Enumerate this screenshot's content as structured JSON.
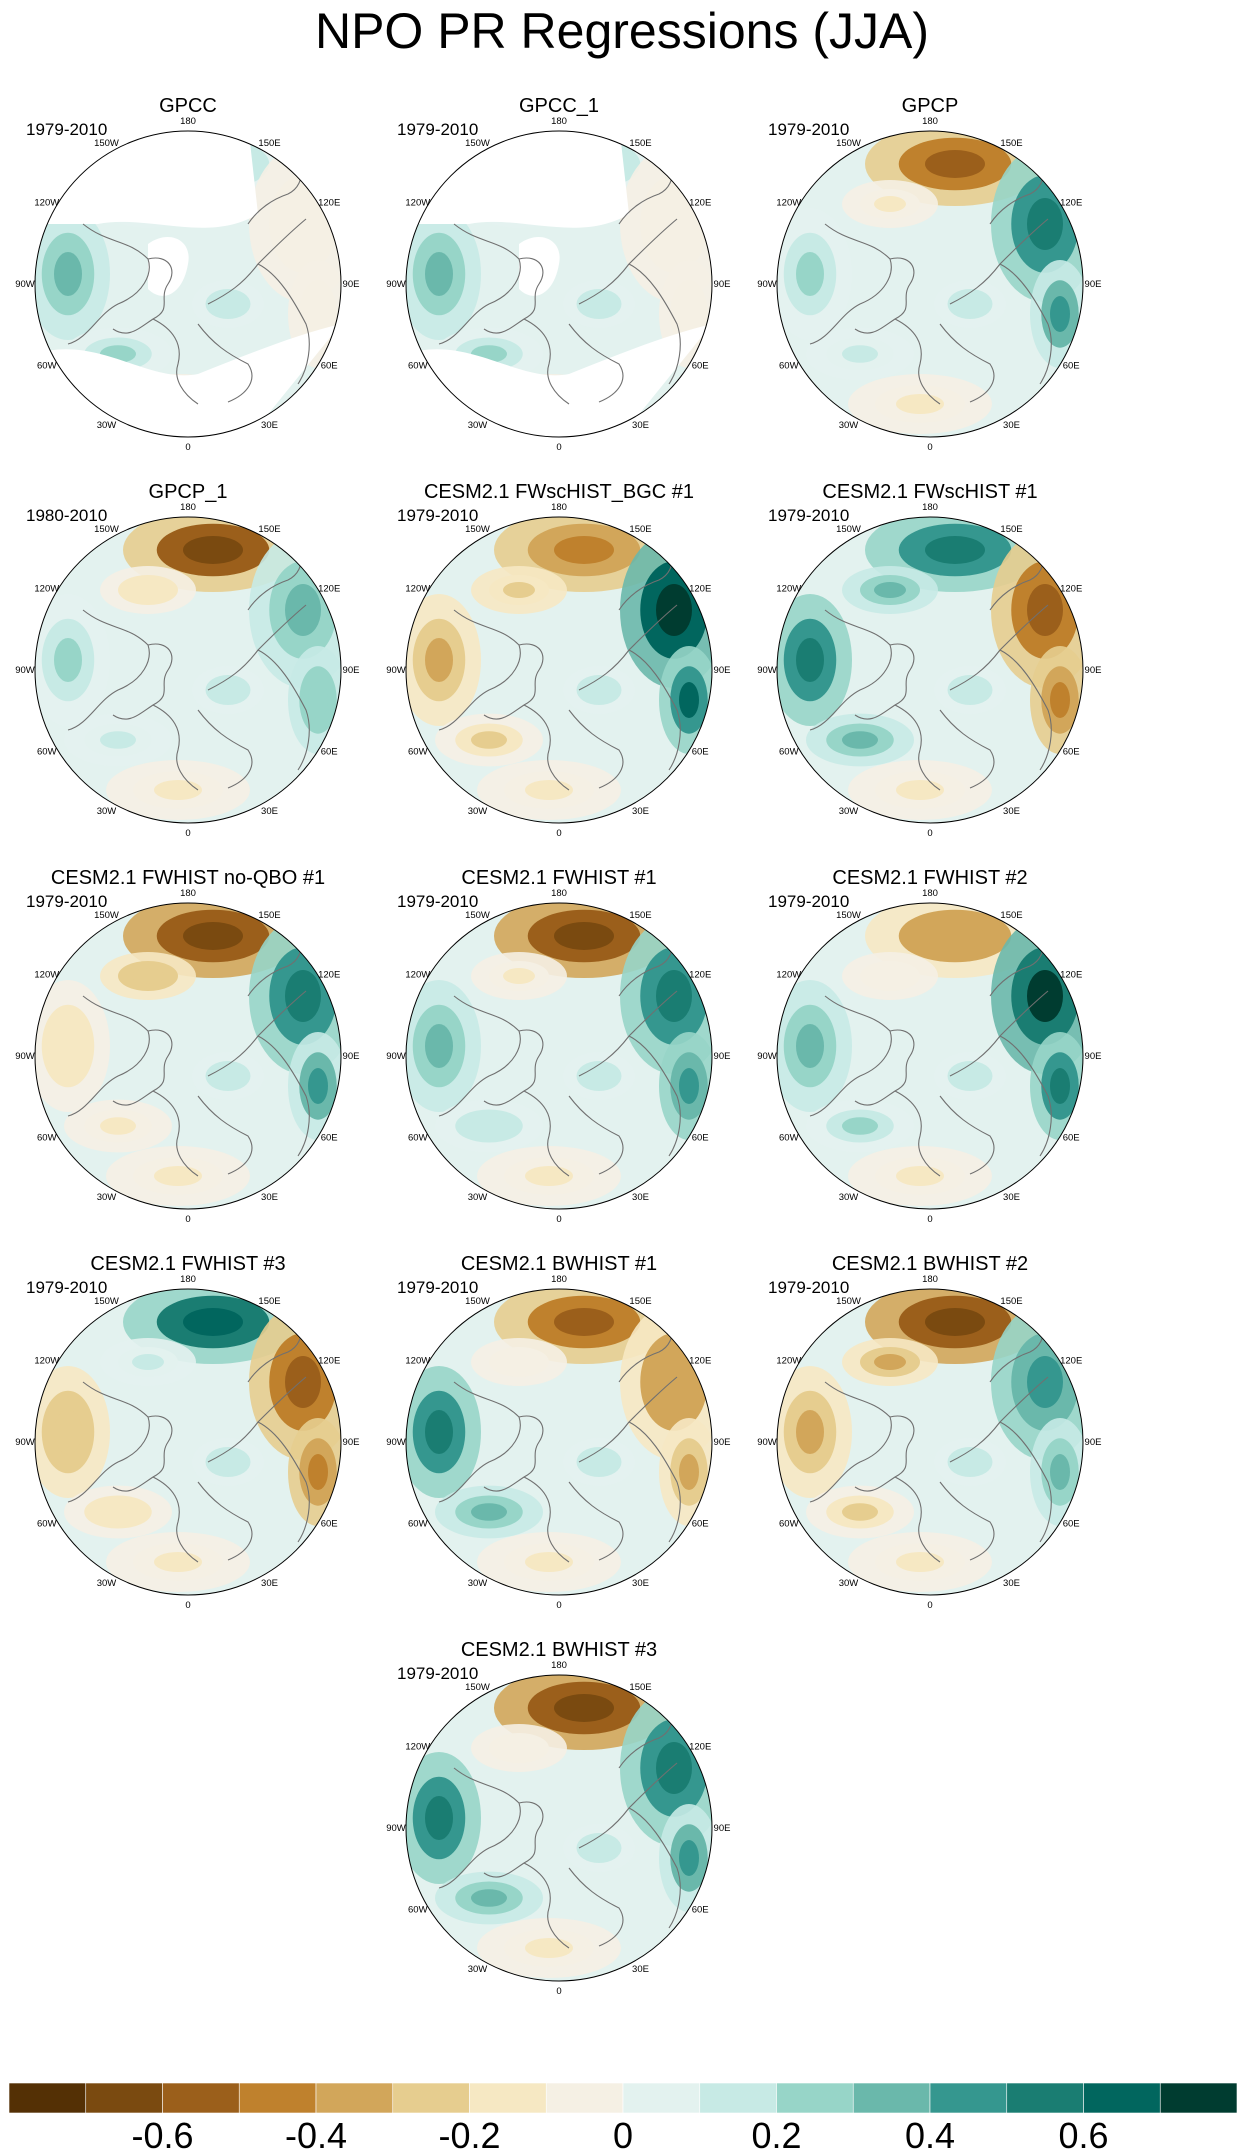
{
  "title": "NPO PR Regressions (JJA)",
  "lon_labels": [
    "180",
    "150E",
    "120E",
    "90E",
    "60E",
    "30E",
    "0",
    "30W",
    "60W",
    "90W",
    "120W",
    "150W"
  ],
  "panels": [
    {
      "title": "GPCC",
      "period": "1979-2010",
      "no_data_regions": [
        "north-america",
        "greenland"
      ],
      "pattern": [
        0.15,
        -0.1,
        0.35
      ]
    },
    {
      "title": "GPCC_1",
      "period": "1979-2010",
      "no_data_regions": [
        "north-america",
        "greenland"
      ],
      "pattern": [
        0.15,
        -0.1,
        0.35
      ]
    },
    {
      "title": "GPCP",
      "period": "1979-2010",
      "no_data_regions": [],
      "pattern": [
        -0.55,
        0.5,
        0.2
      ]
    },
    {
      "title": "GPCP_1",
      "period": "1980-2010",
      "no_data_regions": [],
      "pattern": [
        -0.65,
        0.35,
        0.2
      ]
    },
    {
      "title": "CESM2.1 FWscHIST_BGC #1",
      "period": "1979-2010",
      "no_data_regions": [],
      "pattern": [
        -0.45,
        0.75,
        -0.35
      ]
    },
    {
      "title": "CESM2.1 FWscHIST #1",
      "period": "1979-2010",
      "no_data_regions": [],
      "pattern": [
        0.6,
        -0.6,
        0.5
      ]
    },
    {
      "title": "CESM2.1 FWHIST no-QBO #1",
      "period": "1979-2010",
      "no_data_regions": [],
      "pattern": [
        -0.7,
        0.55,
        -0.2
      ]
    },
    {
      "title": "CESM2.1 FWHIST #1",
      "period": "1979-2010",
      "no_data_regions": [],
      "pattern": [
        -0.7,
        0.6,
        0.3
      ]
    },
    {
      "title": "CESM2.1 FWHIST #2",
      "period": "1979-2010",
      "no_data_regions": [],
      "pattern": [
        -0.4,
        0.7,
        0.35
      ]
    },
    {
      "title": "CESM2.1 FWHIST #3",
      "period": "1979-2010",
      "no_data_regions": [],
      "pattern": [
        0.65,
        -0.6,
        -0.3
      ]
    },
    {
      "title": "CESM2.1 BWHIST #1",
      "period": "1979-2010",
      "no_data_regions": [],
      "pattern": [
        -0.6,
        -0.4,
        0.55
      ]
    },
    {
      "title": "CESM2.1 BWHIST #2",
      "period": "1979-2010",
      "no_data_regions": [],
      "pattern": [
        -0.7,
        0.45,
        -0.35
      ]
    },
    {
      "title": "CESM2.1 BWHIST #3",
      "period": "1979-2010",
      "no_data_regions": [],
      "pattern": [
        -0.7,
        0.55,
        0.6
      ]
    }
  ],
  "colorbar": {
    "colors": [
      "#543005",
      "#7a4a10",
      "#9b5f1b",
      "#bf812d",
      "#d2a65a",
      "#e6cd8f",
      "#f6e8c3",
      "#f5f0e4",
      "#e3f2ef",
      "#c7eae5",
      "#97d5c8",
      "#6ab8ab",
      "#35978f",
      "#1a7d72",
      "#01665e",
      "#003c30"
    ],
    "ticks": [
      "-0.6",
      "-0.4",
      "-0.2",
      "0",
      "0.2",
      "0.4",
      "0.6"
    ],
    "tick_values": [
      -0.6,
      -0.4,
      -0.2,
      0,
      0.2,
      0.4,
      0.6
    ],
    "range": [
      -0.8,
      0.8
    ]
  }
}
